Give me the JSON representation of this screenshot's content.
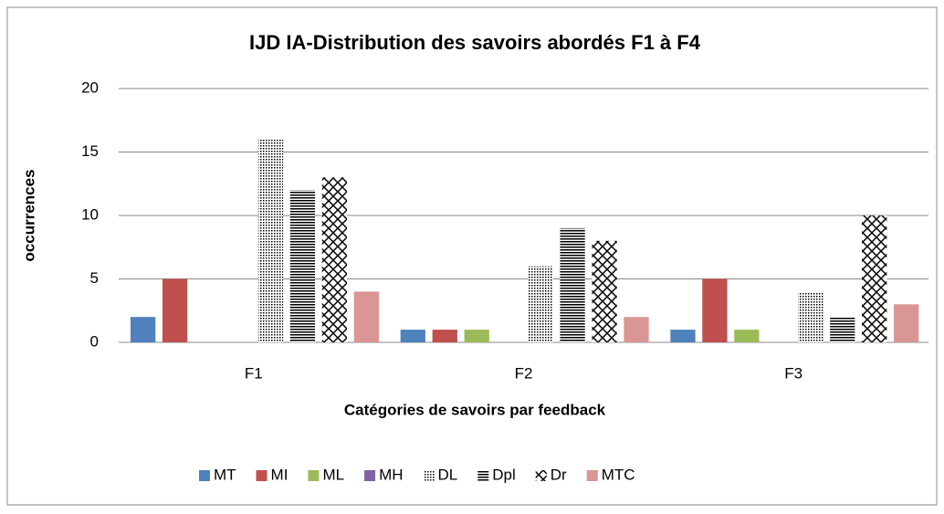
{
  "chart_data": {
    "type": "bar",
    "title": "IJD IA-Distribution des savoirs abordés F1 à F4",
    "x_label": "Catégories de savoirs par feedback",
    "y_label": "occurrences",
    "categories": [
      "F1",
      "F2",
      "F3"
    ],
    "series": [
      {
        "name": "MT",
        "color": "#4f81bd",
        "values": [
          2,
          1,
          1
        ]
      },
      {
        "name": "MI",
        "color": "#c0504d",
        "values": [
          5,
          1,
          5
        ]
      },
      {
        "name": "ML",
        "color": "#9bbb59",
        "values": [
          0,
          1,
          1
        ]
      },
      {
        "name": "MH",
        "color": "#8064a2",
        "values": [
          0,
          0,
          0
        ]
      },
      {
        "name": "DL",
        "color": "#000000",
        "pattern": "dots",
        "values": [
          16,
          6,
          4
        ]
      },
      {
        "name": "Dpl",
        "color": "#000000",
        "pattern": "hlines",
        "values": [
          12,
          9,
          2
        ]
      },
      {
        "name": "Dr",
        "color": "#000000",
        "pattern": "diamonds",
        "values": [
          13,
          8,
          10
        ]
      },
      {
        "name": "MTC",
        "color": "#d99694",
        "values": [
          4,
          2,
          3
        ]
      }
    ],
    "ylim": [
      0,
      20
    ],
    "yticks": [
      0,
      5,
      10,
      15,
      20
    ],
    "grid": true,
    "legend": "bottom"
  }
}
